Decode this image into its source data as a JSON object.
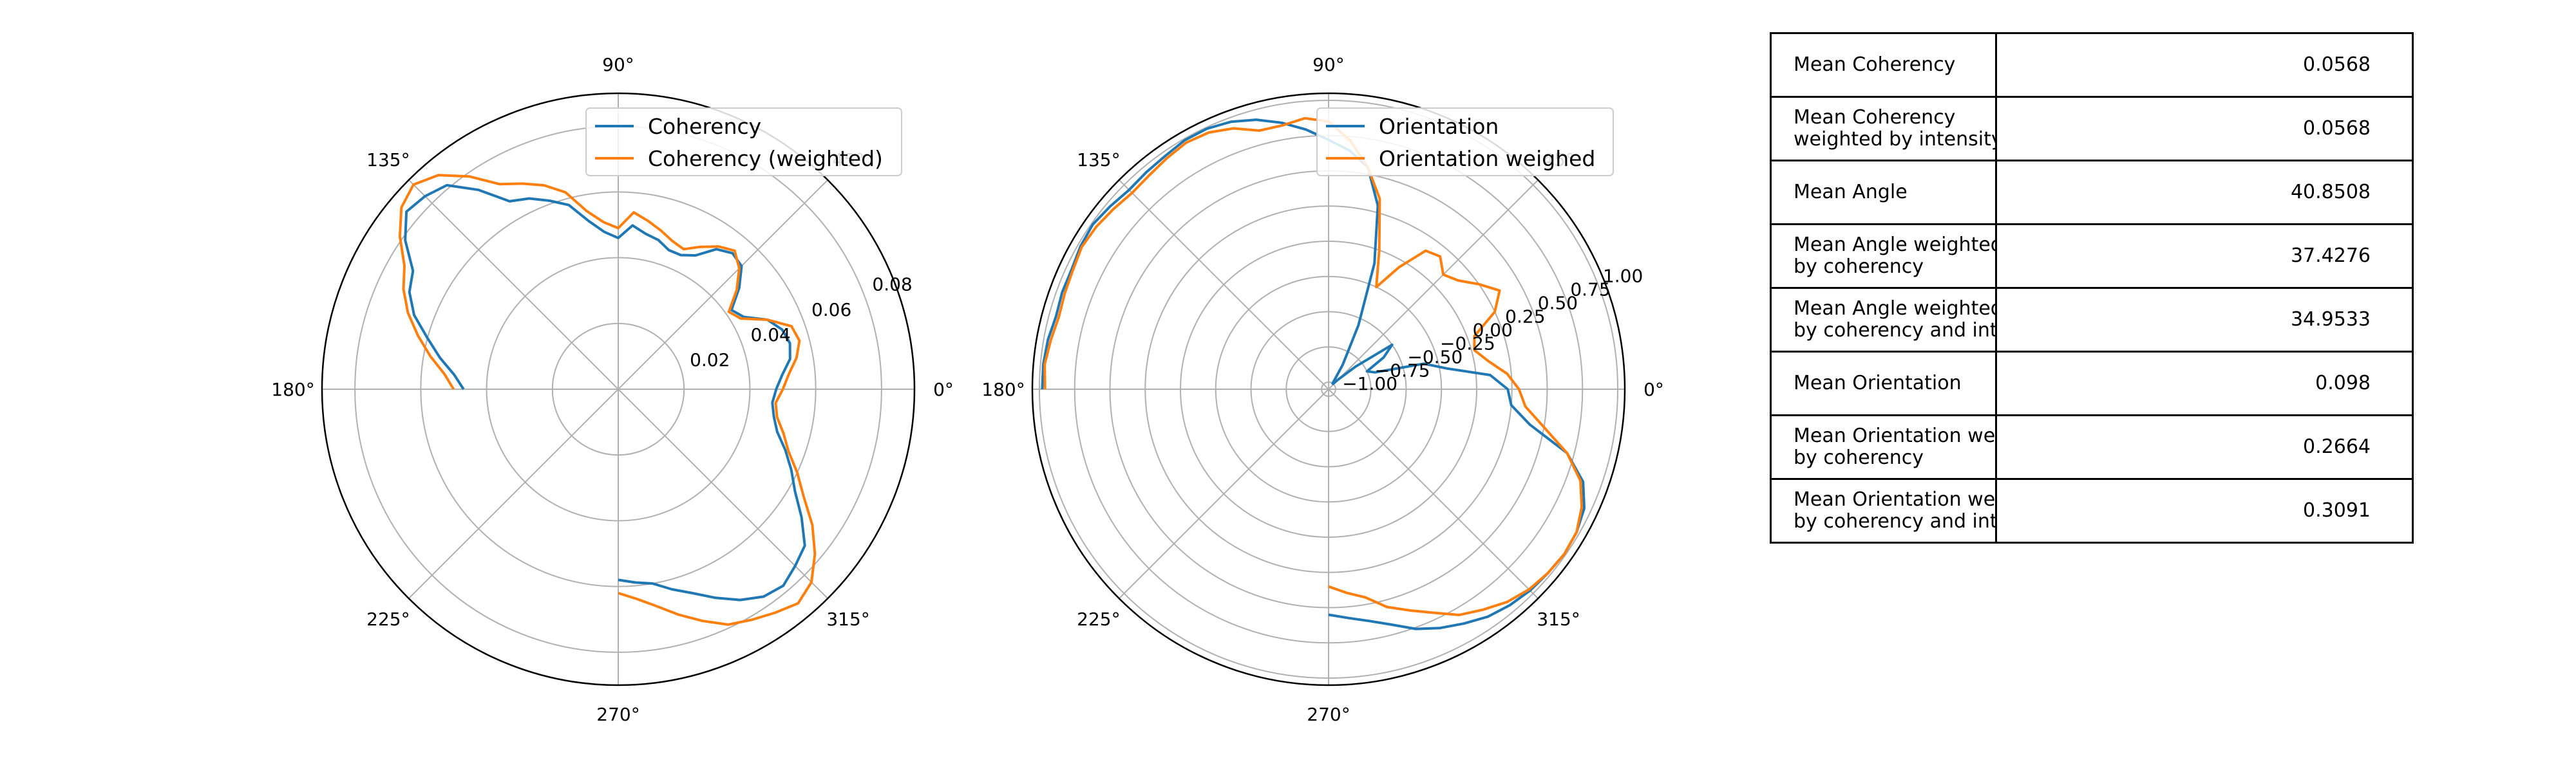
{
  "chart_data": [
    {
      "type": "polar-line",
      "radial_ticks": [
        0.02,
        0.04,
        0.06,
        0.08
      ],
      "rlim": [
        0,
        0.09
      ],
      "angle_ticks": [
        "0°",
        "45°",
        "90°",
        "135°",
        "180°",
        "225°",
        "270°",
        "315°"
      ],
      "grid": true,
      "legend_position": "top-right",
      "series": [
        {
          "name": "Coherency",
          "color": "#1f77b4",
          "theta": [
            -90,
            -85,
            -80,
            -75,
            -70,
            -65,
            -60,
            -55,
            -50,
            -45,
            -40,
            -35,
            -30,
            -25,
            -20,
            -15,
            -10,
            -5,
            0,
            5,
            10,
            15,
            20,
            25,
            30,
            35,
            40,
            45,
            50,
            55,
            60,
            65,
            70,
            75,
            80,
            85,
            90,
            95,
            100,
            105,
            110,
            115,
            120,
            125,
            130,
            135,
            140,
            145,
            150,
            155,
            160,
            165,
            170,
            175,
            180
          ],
          "r": [
            0.058,
            0.059,
            0.06,
            0.063,
            0.066,
            0.07,
            0.074,
            0.077,
            0.078,
            0.076,
            0.074,
            0.068,
            0.062,
            0.058,
            0.054,
            0.05,
            0.048,
            0.047,
            0.048,
            0.05,
            0.053,
            0.054,
            0.053,
            0.05,
            0.044,
            0.042,
            0.048,
            0.053,
            0.054,
            0.052,
            0.047,
            0.045,
            0.045,
            0.047,
            0.048,
            0.05,
            0.046,
            0.048,
            0.052,
            0.058,
            0.061,
            0.064,
            0.066,
            0.074,
            0.081,
            0.083,
            0.084,
            0.079,
            0.072,
            0.07,
            0.066,
            0.06,
            0.055,
            0.05,
            0.047
          ]
        },
        {
          "name": "Coherency (weighted)",
          "color": "#ff7f0e",
          "theta": [
            -90,
            -85,
            -80,
            -75,
            -70,
            -65,
            -60,
            -55,
            -50,
            -45,
            -40,
            -35,
            -30,
            -25,
            -20,
            -15,
            -10,
            -5,
            0,
            5,
            10,
            15,
            20,
            25,
            30,
            35,
            40,
            45,
            50,
            55,
            60,
            65,
            70,
            75,
            80,
            85,
            90,
            95,
            100,
            105,
            110,
            115,
            120,
            125,
            130,
            135,
            140,
            145,
            150,
            155,
            160,
            165,
            170,
            175,
            180
          ],
          "r": [
            0.062,
            0.064,
            0.067,
            0.071,
            0.075,
            0.079,
            0.081,
            0.083,
            0.085,
            0.083,
            0.078,
            0.072,
            0.065,
            0.06,
            0.055,
            0.052,
            0.049,
            0.048,
            0.05,
            0.052,
            0.055,
            0.057,
            0.056,
            0.05,
            0.043,
            0.041,
            0.047,
            0.052,
            0.055,
            0.053,
            0.05,
            0.047,
            0.048,
            0.05,
            0.052,
            0.054,
            0.049,
            0.051,
            0.055,
            0.062,
            0.066,
            0.069,
            0.072,
            0.079,
            0.085,
            0.088,
            0.086,
            0.081,
            0.075,
            0.072,
            0.068,
            0.063,
            0.058,
            0.053,
            0.05
          ]
        }
      ]
    },
    {
      "type": "polar-line",
      "radial_ticks": [
        -1.0,
        -0.75,
        -0.5,
        -0.25,
        0.0,
        0.25,
        0.5,
        0.75,
        1.0
      ],
      "radial_tick_labels": [
        "−1.00",
        "−0.75",
        "−0.50",
        "−0.25",
        "0.00",
        "0.25",
        "0.50",
        "0.75",
        "1.00"
      ],
      "rlim": [
        -1.05,
        1.05
      ],
      "angle_ticks": [
        "0°",
        "45°",
        "90°",
        "135°",
        "180°",
        "225°",
        "270°",
        "315°"
      ],
      "grid": true,
      "legend_position": "top-right",
      "series": [
        {
          "name": "Orientation",
          "color": "#1f77b4",
          "theta": [
            -90,
            -85,
            -80,
            -75,
            -70,
            -65,
            -60,
            -55,
            -50,
            -45,
            -40,
            -35,
            -30,
            -25,
            -20,
            -15,
            -10,
            -5,
            0,
            5,
            10,
            15,
            20,
            25,
            30,
            35,
            40,
            45,
            50,
            55,
            60,
            65,
            70,
            75,
            80,
            85,
            90,
            95,
            100,
            105,
            110,
            115,
            120,
            125,
            130,
            135,
            140,
            145,
            150,
            155,
            160,
            165,
            170,
            175,
            180
          ],
          "r": [
            0.55,
            0.58,
            0.62,
            0.68,
            0.76,
            0.82,
            0.87,
            0.92,
            0.95,
            0.97,
            0.98,
            0.99,
            0.98,
            0.95,
            0.87,
            0.7,
            0.4,
            0.25,
            0.22,
            0.1,
            -0.2,
            -0.35,
            -0.7,
            -0.75,
            -0.6,
            -0.5,
            -0.8,
            -0.95,
            -1.0,
            -1.0,
            -0.85,
            -0.55,
            -0.1,
            0.3,
            0.55,
            0.65,
            0.72,
            0.8,
            0.87,
            0.93,
            0.97,
            0.99,
            0.99,
            0.97,
            0.96,
            0.95,
            0.97,
            0.99,
            0.98,
            0.96,
            0.96,
            0.95,
            0.97,
            0.98,
            0.98
          ]
        },
        {
          "name": "Orientation weighed",
          "color": "#ff7f0e",
          "theta": [
            -90,
            -85,
            -80,
            -75,
            -70,
            -65,
            -60,
            -55,
            -50,
            -45,
            -40,
            -35,
            -30,
            -25,
            -20,
            -15,
            -10,
            -5,
            0,
            5,
            10,
            15,
            20,
            25,
            30,
            35,
            40,
            45,
            50,
            55,
            60,
            65,
            70,
            75,
            80,
            85,
            90,
            95,
            100,
            105,
            110,
            115,
            120,
            125,
            130,
            135,
            140,
            145,
            150,
            155,
            160,
            165,
            170,
            175,
            180
          ],
          "r": [
            0.35,
            0.4,
            0.45,
            0.55,
            0.62,
            0.7,
            0.8,
            0.86,
            0.92,
            0.96,
            0.98,
            0.99,
            0.98,
            0.93,
            0.85,
            0.7,
            0.5,
            0.35,
            0.3,
            0.22,
            0.1,
            0.02,
            0.05,
            0.25,
            0.35,
            0.25,
            0.15,
            0.1,
            0.18,
            0.15,
            -0.05,
            -0.25,
            0.0,
            0.35,
            0.55,
            0.72,
            0.85,
            0.88,
            0.85,
            0.85,
            0.92,
            0.96,
            0.97,
            0.95,
            0.93,
            0.92,
            0.94,
            0.96,
            0.97,
            0.95,
            0.94,
            0.93,
            0.95,
            0.97,
            0.96
          ]
        }
      ]
    }
  ],
  "table": {
    "rows": [
      {
        "label_lines": [
          "Mean Coherency"
        ],
        "value": "0.0568"
      },
      {
        "label_lines": [
          "Mean Coherency",
          "weighted by intensity"
        ],
        "value": "0.0568"
      },
      {
        "label_lines": [
          "Mean Angle"
        ],
        "value": "40.8508"
      },
      {
        "label_lines": [
          "Mean Angle weighted",
          "by coherency"
        ],
        "value": "37.4276"
      },
      {
        "label_lines": [
          "Mean Angle weighted",
          "by coherency and intensity"
        ],
        "value": "34.9533"
      },
      {
        "label_lines": [
          "Mean Orientation"
        ],
        "value": "0.098"
      },
      {
        "label_lines": [
          "Mean Orientation weighted",
          "by coherency"
        ],
        "value": "0.2664"
      },
      {
        "label_lines": [
          "Mean Orientation weighted",
          "by coherency and intensity"
        ],
        "value": "0.3091"
      }
    ]
  }
}
